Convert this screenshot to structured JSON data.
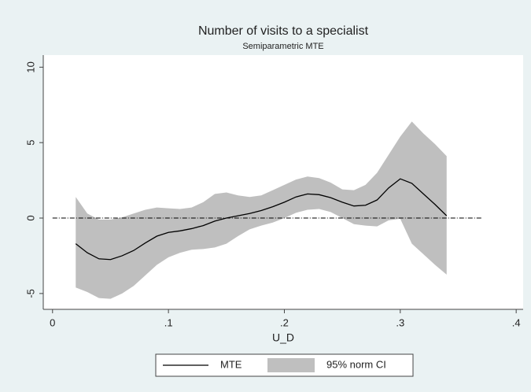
{
  "chart_data": {
    "type": "line-band",
    "title": "Number of visits to a specialist",
    "subtitle": "Semiparametric MTE",
    "x_label": "U_D",
    "x": [
      0.02,
      0.03,
      0.04,
      0.05,
      0.06,
      0.07,
      0.08,
      0.09,
      0.1,
      0.11,
      0.12,
      0.13,
      0.14,
      0.15,
      0.16,
      0.17,
      0.18,
      0.19,
      0.2,
      0.21,
      0.22,
      0.23,
      0.24,
      0.25,
      0.26,
      0.27,
      0.28,
      0.29,
      0.3,
      0.31,
      0.32,
      0.33,
      0.34
    ],
    "series": [
      {
        "name": "MTE",
        "color": "#000000",
        "values": [
          -1.7,
          -2.3,
          -2.7,
          -2.75,
          -2.5,
          -2.15,
          -1.65,
          -1.2,
          -0.95,
          -0.85,
          -0.7,
          -0.5,
          -0.2,
          0.0,
          0.15,
          0.3,
          0.5,
          0.75,
          1.05,
          1.4,
          1.6,
          1.55,
          1.35,
          1.05,
          0.8,
          0.85,
          1.2,
          2.0,
          2.6,
          2.3,
          1.6,
          0.9,
          0.15
        ]
      }
    ],
    "band": {
      "name": "95% norm CI",
      "color": "#bfbfbf",
      "upper": [
        1.4,
        0.3,
        -0.1,
        -0.1,
        0.05,
        0.3,
        0.55,
        0.7,
        0.65,
        0.6,
        0.7,
        1.05,
        1.6,
        1.7,
        1.5,
        1.4,
        1.5,
        1.85,
        2.2,
        2.55,
        2.75,
        2.65,
        2.35,
        1.9,
        1.85,
        2.2,
        3.0,
        4.2,
        5.4,
        6.4,
        5.6,
        4.9,
        4.1
      ],
      "lower": [
        -4.6,
        -4.9,
        -5.3,
        -5.35,
        -5.0,
        -4.5,
        -3.8,
        -3.1,
        -2.6,
        -2.3,
        -2.1,
        -2.05,
        -1.95,
        -1.7,
        -1.2,
        -0.75,
        -0.5,
        -0.3,
        0.0,
        0.35,
        0.55,
        0.6,
        0.4,
        0.0,
        -0.4,
        -0.5,
        -0.55,
        -0.15,
        -0.05,
        -1.7,
        -2.4,
        -3.1,
        -3.75
      ]
    },
    "reference_line": 0,
    "xlim": [
      -0.008,
      0.406
    ],
    "xticks": [
      0,
      {
        "value": 0.1,
        "label": ".1"
      },
      {
        "value": 0.2,
        "label": ".2"
      },
      {
        "value": 0.3,
        "label": ".3"
      },
      {
        "value": 0.4,
        "label": ".4"
      }
    ],
    "ylim": [
      -6.05,
      10.8
    ],
    "yticks": [
      -5,
      0,
      5,
      10
    ],
    "legend": "bottom"
  }
}
